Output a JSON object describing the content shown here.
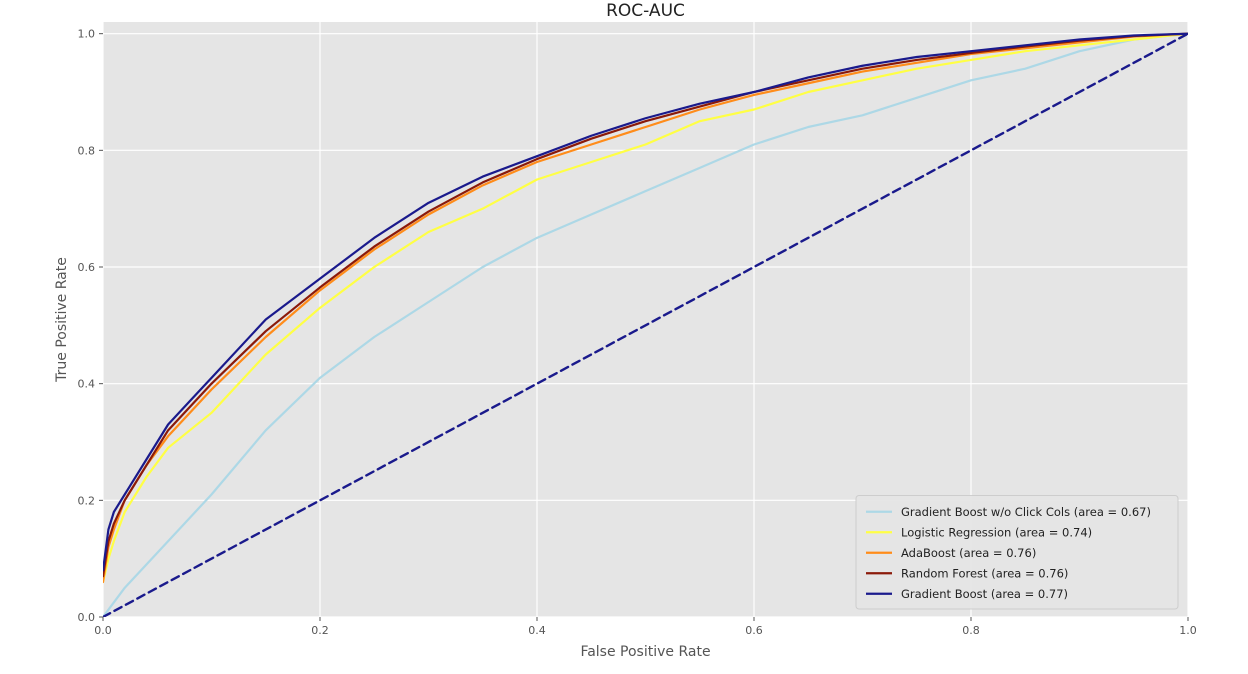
{
  "chart_data": {
    "type": "line",
    "title": "ROC-AUC",
    "xlabel": "False Positive Rate",
    "ylabel": "True Positive Rate",
    "xlim": [
      0.0,
      1.0
    ],
    "ylim": [
      0.0,
      1.02
    ],
    "x_ticks": [
      0.0,
      0.2,
      0.4,
      0.6,
      0.8,
      1.0
    ],
    "y_ticks": [
      0.0,
      0.2,
      0.4,
      0.6,
      0.8,
      1.0
    ],
    "x_tick_labels": [
      "0.0",
      "0.2",
      "0.4",
      "0.6",
      "0.8",
      "1.0"
    ],
    "y_tick_labels": [
      "0.0",
      "0.2",
      "0.4",
      "0.6",
      "0.8",
      "1.0"
    ],
    "grid": true,
    "legend_position": "bottom-right",
    "colors": {
      "plot_background": "#e5e5e5",
      "grid": "#ffffff"
    },
    "series": [
      {
        "name": "Gradient Boost w/o Click Cols (area = 0.67)",
        "color": "#add8e6",
        "dashed": false,
        "x": [
          0.0,
          0.02,
          0.05,
          0.1,
          0.15,
          0.2,
          0.25,
          0.3,
          0.35,
          0.4,
          0.45,
          0.5,
          0.55,
          0.6,
          0.65,
          0.7,
          0.75,
          0.8,
          0.85,
          0.9,
          0.95,
          1.0
        ],
        "y": [
          0.0,
          0.05,
          0.11,
          0.21,
          0.32,
          0.41,
          0.48,
          0.54,
          0.6,
          0.65,
          0.69,
          0.73,
          0.77,
          0.81,
          0.84,
          0.86,
          0.89,
          0.92,
          0.94,
          0.97,
          0.99,
          1.0
        ]
      },
      {
        "name": "Logistic Regression (area = 0.74)",
        "color": "#ffff44",
        "dashed": false,
        "x": [
          0.0,
          0.005,
          0.01,
          0.02,
          0.04,
          0.06,
          0.08,
          0.1,
          0.15,
          0.2,
          0.25,
          0.3,
          0.35,
          0.4,
          0.45,
          0.5,
          0.55,
          0.6,
          0.65,
          0.7,
          0.75,
          0.8,
          0.85,
          0.9,
          0.95,
          1.0
        ],
        "y": [
          0.06,
          0.1,
          0.13,
          0.18,
          0.24,
          0.29,
          0.32,
          0.35,
          0.45,
          0.53,
          0.6,
          0.66,
          0.7,
          0.75,
          0.78,
          0.81,
          0.85,
          0.87,
          0.9,
          0.92,
          0.94,
          0.955,
          0.97,
          0.98,
          0.99,
          1.0
        ]
      },
      {
        "name": "AdaBoost (area = 0.76)",
        "color": "#ff8c1a",
        "dashed": false,
        "x": [
          0.0,
          0.005,
          0.01,
          0.02,
          0.04,
          0.06,
          0.08,
          0.1,
          0.15,
          0.2,
          0.25,
          0.3,
          0.35,
          0.4,
          0.45,
          0.5,
          0.55,
          0.6,
          0.65,
          0.7,
          0.75,
          0.8,
          0.85,
          0.9,
          0.95,
          1.0
        ],
        "y": [
          0.06,
          0.12,
          0.15,
          0.2,
          0.26,
          0.31,
          0.35,
          0.39,
          0.48,
          0.56,
          0.63,
          0.69,
          0.74,
          0.78,
          0.81,
          0.84,
          0.87,
          0.895,
          0.915,
          0.935,
          0.95,
          0.965,
          0.975,
          0.985,
          0.995,
          1.0
        ]
      },
      {
        "name": "Random Forest (area = 0.76)",
        "color": "#8b1a0a",
        "dashed": false,
        "x": [
          0.0,
          0.005,
          0.01,
          0.02,
          0.04,
          0.06,
          0.08,
          0.1,
          0.15,
          0.2,
          0.25,
          0.3,
          0.35,
          0.4,
          0.45,
          0.5,
          0.55,
          0.6,
          0.65,
          0.7,
          0.75,
          0.8,
          0.85,
          0.9,
          0.95,
          1.0
        ],
        "y": [
          0.07,
          0.13,
          0.16,
          0.2,
          0.26,
          0.32,
          0.36,
          0.4,
          0.49,
          0.565,
          0.635,
          0.695,
          0.745,
          0.785,
          0.82,
          0.85,
          0.875,
          0.9,
          0.92,
          0.94,
          0.955,
          0.967,
          0.978,
          0.988,
          0.996,
          1.0
        ]
      },
      {
        "name": "Gradient Boost (area = 0.77)",
        "color": "#1a1a8c",
        "dashed": false,
        "x": [
          0.0,
          0.005,
          0.01,
          0.02,
          0.04,
          0.06,
          0.08,
          0.1,
          0.15,
          0.2,
          0.25,
          0.3,
          0.35,
          0.4,
          0.45,
          0.5,
          0.55,
          0.6,
          0.65,
          0.7,
          0.75,
          0.8,
          0.85,
          0.9,
          0.95,
          1.0
        ],
        "y": [
          0.08,
          0.15,
          0.18,
          0.21,
          0.27,
          0.33,
          0.37,
          0.41,
          0.51,
          0.58,
          0.65,
          0.71,
          0.755,
          0.79,
          0.825,
          0.855,
          0.88,
          0.9,
          0.925,
          0.945,
          0.96,
          0.97,
          0.98,
          0.99,
          0.997,
          1.0
        ]
      },
      {
        "name": "",
        "color": "#1a1a8c",
        "dashed": true,
        "x": [
          0.0,
          1.0
        ],
        "y": [
          0.0,
          1.0
        ]
      }
    ]
  }
}
